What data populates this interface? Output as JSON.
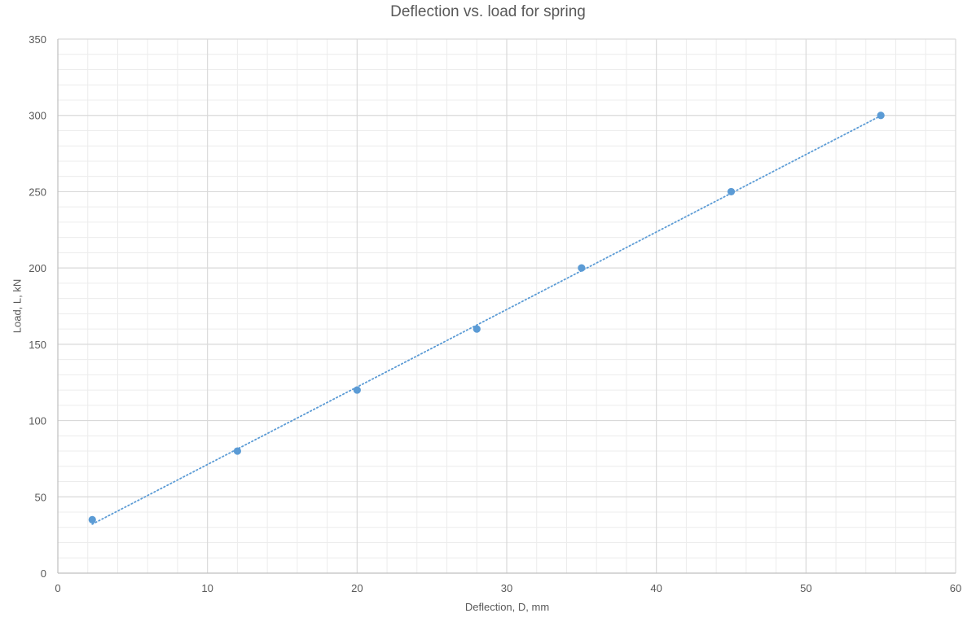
{
  "chart_data": {
    "type": "scatter",
    "title": "Deflection vs. load for spring",
    "xlabel": "Deflection, D, mm",
    "ylabel": "Load, L, kN",
    "xlim": [
      0,
      60
    ],
    "ylim": [
      0,
      350
    ],
    "x_major_step": 10,
    "x_minor_step": 2,
    "y_major_step": 50,
    "y_minor_step": 10,
    "grid": true,
    "legend": "none",
    "series": [
      {
        "x": [
          2.3,
          12,
          20,
          28,
          35,
          45,
          55
        ],
        "y": [
          35,
          80,
          120,
          160,
          200,
          250,
          300
        ],
        "color": "#5b9bd5",
        "marker": "circle"
      }
    ],
    "trendline": {
      "type": "linear",
      "style": "dotted",
      "color": "#5b9bd5",
      "x_range": [
        2.3,
        55
      ]
    }
  }
}
